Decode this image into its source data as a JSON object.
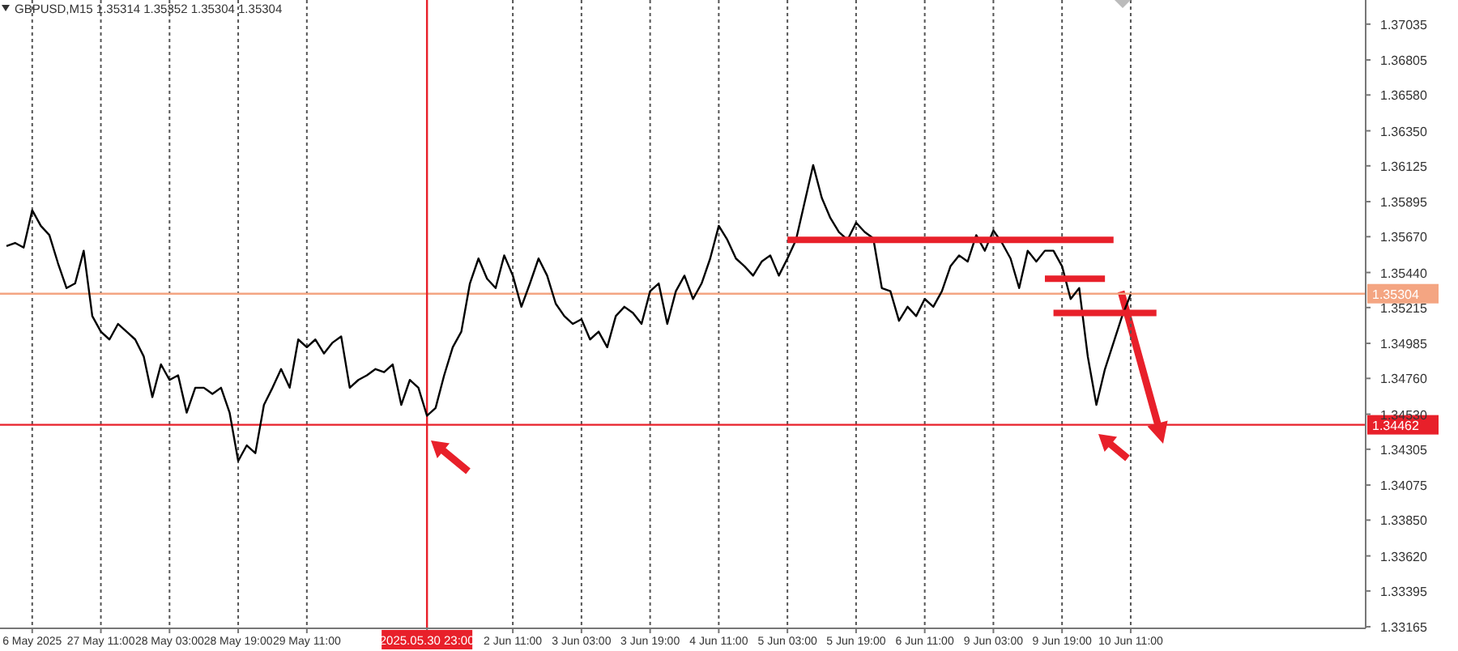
{
  "chart_data": {
    "type": "line",
    "title": "GBPUSD,M15  1.35314 1.35352 1.35304 1.35304",
    "categories": [
      null,
      null,
      null,
      "6 May 2025",
      null,
      null,
      null,
      null,
      null,
      null,
      null,
      "27 May 11:00",
      null,
      null,
      null,
      null,
      null,
      null,
      null,
      "28 May 03:00",
      null,
      null,
      null,
      null,
      null,
      null,
      null,
      "28 May 19:00",
      null,
      null,
      null,
      null,
      null,
      null,
      null,
      "29 May 11:00",
      null,
      null,
      null,
      null,
      null,
      null,
      null,
      null,
      null,
      null,
      null,
      null,
      null,
      "2025.05.30 23:00",
      null,
      null,
      null,
      null,
      null,
      null,
      null,
      null,
      null,
      "2 Jun 11:00",
      null,
      null,
      null,
      null,
      null,
      null,
      null,
      "3 Jun 03:00",
      null,
      null,
      null,
      null,
      null,
      null,
      null,
      "3 Jun 19:00",
      null,
      null,
      null,
      null,
      null,
      null,
      null,
      "4 Jun 11:00",
      null,
      null,
      null,
      null,
      null,
      null,
      null,
      "5 Jun 03:00",
      null,
      null,
      null,
      null,
      null,
      null,
      null,
      "5 Jun 19:00",
      null,
      null,
      null,
      null,
      null,
      null,
      null,
      "6 Jun 11:00",
      null,
      null,
      null,
      null,
      null,
      null,
      null,
      "9 Jun 03:00",
      null,
      null,
      null,
      null,
      null,
      null,
      null,
      "9 Jun 19:00",
      null,
      null,
      null,
      null,
      null,
      null,
      null,
      "10 Jun 11:00",
      null,
      null,
      null,
      null,
      null,
      null,
      null,
      null,
      null,
      null,
      null,
      null,
      null,
      null,
      null,
      null,
      null,
      null,
      null,
      null,
      null,
      null,
      null,
      null,
      null,
      null,
      null
    ],
    "ylim": [
      1.33155,
      1.3719
    ],
    "yticks": [
      1.37035,
      1.36805,
      {
        "value": 1.3658,
        "label": "1.36580"
      },
      {
        "value": 1.3635,
        "label": "1.36350"
      },
      1.36125,
      1.35895,
      {
        "value": 1.3567,
        "label": "1.35670"
      },
      {
        "value": 1.3544,
        "label": "1.35440"
      },
      1.35215,
      1.34985,
      {
        "value": 1.3476,
        "label": "1.34760"
      },
      {
        "value": 1.3453,
        "label": "1.34530"
      },
      1.34305,
      1.34075,
      {
        "value": 1.3385,
        "label": "1.33850"
      },
      {
        "value": 1.3362,
        "label": "1.33620"
      },
      1.33395,
      1.33165
    ],
    "grid": "x",
    "ref_lines": [
      {
        "axis": "y",
        "value": 1.35304,
        "label": "1.35304",
        "color": "#f4a582"
      },
      {
        "axis": "y",
        "value": 1.34462,
        "label": "1.34462",
        "color": "#e8202a"
      },
      {
        "axis": "x",
        "value": "2025.05.30 23:00",
        "color": "#e8202a"
      }
    ],
    "series": [
      {
        "color": "#000000",
        "values": [
          1.3561,
          1.3563,
          1.356,
          1.3584,
          1.3574,
          1.3568,
          1.355,
          1.3534,
          1.3537,
          1.3558,
          1.3516,
          1.3506,
          1.3501,
          1.3511,
          1.3506,
          1.3501,
          1.349,
          1.3464,
          1.3485,
          1.3475,
          1.3478,
          1.3454,
          1.347,
          1.347,
          1.3466,
          1.347,
          1.3454,
          1.3423,
          1.3433,
          1.3428,
          1.3459,
          1.347,
          1.3482,
          1.347,
          1.3501,
          1.3496,
          1.3501,
          1.3492,
          1.3499,
          1.3503,
          1.347,
          1.3475,
          1.3478,
          1.3482,
          1.348,
          1.3485,
          1.3459,
          1.3475,
          1.347,
          1.3452,
          1.3457,
          1.3478,
          1.3496,
          1.3506,
          1.3537,
          1.3553,
          1.354,
          1.3534,
          1.3555,
          1.3542,
          1.3522,
          1.3537,
          1.3553,
          1.3542,
          1.3524,
          1.3516,
          1.3511,
          1.3514,
          1.3501,
          1.3506,
          1.3496,
          1.3516,
          1.3522,
          1.3518,
          1.3511,
          1.3532,
          1.3537,
          1.3511,
          1.3532,
          1.3542,
          1.3527,
          1.3537,
          1.3553,
          1.3574,
          1.3565,
          1.3553,
          1.3548,
          1.3542,
          1.3551,
          1.3555,
          1.3542,
          1.3553,
          1.3565,
          1.3589,
          1.3613,
          1.3592,
          1.3579,
          1.357,
          1.3565,
          1.3576,
          1.357,
          1.3566,
          1.3534,
          1.3532,
          1.3513,
          1.3522,
          1.3516,
          1.3527,
          1.3522,
          1.3532,
          1.3548,
          1.3555,
          1.3551,
          1.3568,
          1.3558,
          1.3571,
          1.3563,
          1.3553,
          1.3534,
          1.3558,
          1.3551,
          1.3558,
          1.3558,
          1.3548,
          1.3527,
          1.3534,
          1.349,
          1.3459,
          1.3482,
          1.3499,
          1.3516,
          1.353,
          null,
          null,
          null,
          null,
          null,
          null,
          null,
          null,
          null,
          null,
          null,
          null,
          null,
          null,
          null,
          null,
          null,
          null,
          null,
          null,
          null,
          null,
          null,
          null,
          null,
          null,
          null
        ]
      },
      {
        "type": "line",
        "color": "#e8202a",
        "values": [
          null,
          null,
          null,
          null,
          null,
          null,
          null,
          null,
          null,
          null,
          null,
          null,
          null,
          null,
          null,
          null,
          null,
          null,
          null,
          null,
          null,
          null,
          null,
          null,
          null,
          null,
          null,
          null,
          null,
          null,
          null,
          null,
          null,
          null,
          null,
          null,
          null,
          null,
          null,
          null,
          null,
          null,
          null,
          null,
          null,
          null,
          null,
          null,
          null,
          null,
          null,
          null,
          null,
          null,
          null,
          null,
          null,
          null,
          null,
          null,
          null,
          null,
          null,
          null,
          null,
          null,
          null,
          null,
          null,
          null,
          null,
          null,
          null,
          null,
          null,
          null,
          null,
          null,
          null,
          null,
          null,
          null,
          null,
          null,
          null,
          null,
          null,
          null,
          null,
          null,
          null,
          1.3565,
          1.3565,
          1.3565,
          1.3565,
          1.3565,
          1.3565,
          1.3565,
          1.3565,
          1.3565,
          1.3565,
          1.3565,
          1.3565,
          1.3565,
          1.3565,
          1.3565,
          1.3565,
          1.3565,
          1.3565,
          1.3565,
          1.3565,
          1.3565,
          1.3565,
          1.3565,
          1.3565,
          1.3565,
          1.3565,
          1.3565,
          1.3565,
          1.3565,
          1.3565,
          1.3565,
          1.3565,
          1.3565,
          1.3565,
          1.3565,
          1.3565,
          1.3565,
          1.3565,
          1.3565,
          null,
          null,
          null,
          null,
          null,
          null,
          null,
          null,
          null,
          null,
          null,
          null,
          null,
          null,
          null,
          null,
          null,
          null,
          null,
          null,
          null,
          null,
          null,
          null,
          null,
          null,
          null,
          null,
          null
        ]
      },
      {
        "type": "line",
        "color": "#e8202a",
        "values": [
          null,
          null,
          null,
          null,
          null,
          null,
          null,
          null,
          null,
          null,
          null,
          null,
          null,
          null,
          null,
          null,
          null,
          null,
          null,
          null,
          null,
          null,
          null,
          null,
          null,
          null,
          null,
          null,
          null,
          null,
          null,
          null,
          null,
          null,
          null,
          null,
          null,
          null,
          null,
          null,
          null,
          null,
          null,
          null,
          null,
          null,
          null,
          null,
          null,
          null,
          null,
          null,
          null,
          null,
          null,
          null,
          null,
          null,
          null,
          null,
          null,
          null,
          null,
          null,
          null,
          null,
          null,
          null,
          null,
          null,
          null,
          null,
          null,
          null,
          null,
          null,
          null,
          null,
          null,
          null,
          null,
          null,
          null,
          null,
          null,
          null,
          null,
          null,
          null,
          null,
          null,
          null,
          null,
          null,
          null,
          null,
          null,
          null,
          null,
          null,
          null,
          null,
          null,
          null,
          null,
          null,
          null,
          null,
          null,
          null,
          null,
          null,
          null,
          null,
          null,
          null,
          null,
          null,
          null,
          null,
          null,
          1.354,
          1.354,
          1.354,
          1.354,
          1.354,
          1.354,
          1.354,
          1.354,
          null,
          null,
          null,
          null,
          null,
          null,
          null,
          null,
          null,
          null,
          null,
          null,
          null,
          null,
          null,
          null,
          null,
          null,
          null,
          null,
          null,
          null,
          null,
          null,
          null,
          null,
          null,
          null,
          null,
          null
        ]
      },
      {
        "type": "line",
        "color": "#e8202a",
        "values": [
          null,
          null,
          null,
          null,
          null,
          null,
          null,
          null,
          null,
          null,
          null,
          null,
          null,
          null,
          null,
          null,
          null,
          null,
          null,
          null,
          null,
          null,
          null,
          null,
          null,
          null,
          null,
          null,
          null,
          null,
          null,
          null,
          null,
          null,
          null,
          null,
          null,
          null,
          null,
          null,
          null,
          null,
          null,
          null,
          null,
          null,
          null,
          null,
          null,
          null,
          null,
          null,
          null,
          null,
          null,
          null,
          null,
          null,
          null,
          null,
          null,
          null,
          null,
          null,
          null,
          null,
          null,
          null,
          null,
          null,
          null,
          null,
          null,
          null,
          null,
          null,
          null,
          null,
          null,
          null,
          null,
          null,
          null,
          null,
          null,
          null,
          null,
          null,
          null,
          null,
          null,
          null,
          null,
          null,
          null,
          null,
          null,
          null,
          null,
          null,
          null,
          null,
          null,
          null,
          null,
          null,
          null,
          null,
          null,
          null,
          null,
          null,
          null,
          null,
          null,
          null,
          null,
          null,
          null,
          null,
          null,
          null,
          1.3518,
          1.3518,
          1.3518,
          1.3518,
          1.3518,
          1.3518,
          1.3518,
          1.3518,
          1.3518,
          1.3518,
          1.3518,
          1.3518,
          1.3518,
          null,
          null,
          null,
          null,
          null,
          null,
          null,
          null,
          null,
          null,
          null,
          null,
          null,
          null,
          null,
          null,
          null,
          null,
          null,
          null,
          null,
          null,
          null,
          null
        ]
      }
    ]
  }
}
